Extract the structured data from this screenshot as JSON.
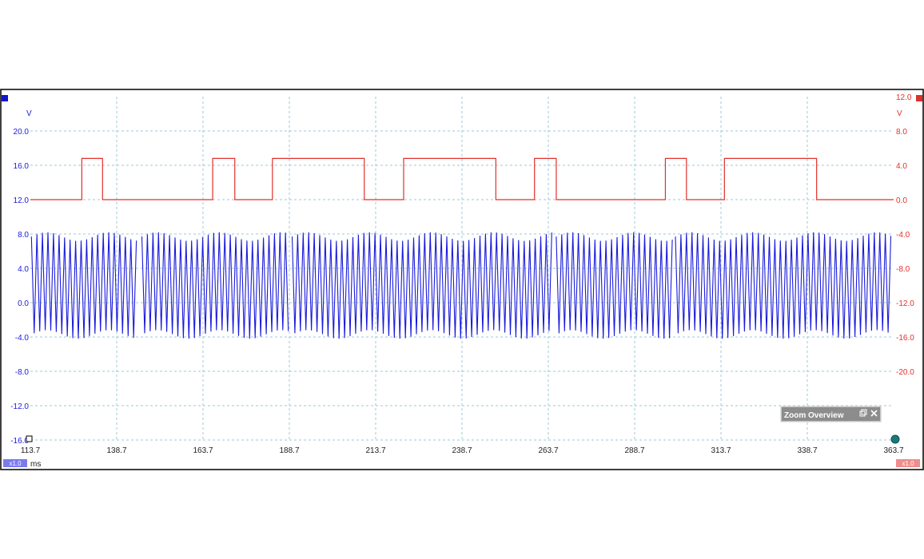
{
  "colors": {
    "channel_a": "#1a1adc",
    "channel_b": "#e0302c",
    "grid": "#9cc8d8",
    "frame": "#000000",
    "zoom_box": "#8c8c8c",
    "handle": "#1a7a7a"
  },
  "x_axis": {
    "unit": "ms",
    "scale_badge": "x1.0"
  },
  "left_axis": {
    "unit": "V",
    "color": "#1a1adc"
  },
  "right_axis": {
    "unit": "V",
    "scale_badge": "x1.0",
    "color": "#e0302c"
  },
  "zoom_overview": {
    "label": "Zoom Overview",
    "restore_icon": "restore-icon",
    "close_icon": "close-icon"
  },
  "chart_data": {
    "type": "line",
    "title": "",
    "xlabel": "ms",
    "ylabel_left": "V",
    "ylabel_right": "V",
    "grid": true,
    "xlim": [
      113.7,
      363.7
    ],
    "ylim_left": [
      -16.0,
      24.0
    ],
    "ylim_right": [
      -28.0,
      12.0
    ],
    "x_ticks": [
      "113.7",
      "138.7",
      "163.7",
      "188.7",
      "213.7",
      "238.7",
      "263.7",
      "288.7",
      "313.7",
      "338.7",
      "363.7"
    ],
    "y_ticks_left": [
      "20.0",
      "16.0",
      "12.0",
      "8.0",
      "4.0",
      "0.0",
      "-4.0",
      "-8.0",
      "-12.0",
      "-16.0"
    ],
    "y_ticks_right": [
      "12.0",
      "8.0",
      "4.0",
      "0.0",
      "-4.0",
      "-8.0",
      "-12.0",
      "-16.0",
      "-20.0"
    ],
    "series": [
      {
        "axis": "right",
        "kind": "digital",
        "low": 0.0,
        "high": 4.8,
        "high_intervals_ms": [
          [
            128.6,
            134.6
          ],
          [
            166.5,
            172.9
          ],
          [
            183.8,
            210.4
          ],
          [
            221.8,
            248.5
          ],
          [
            259.7,
            266.0
          ],
          [
            297.6,
            303.7
          ],
          [
            314.7,
            341.4
          ]
        ]
      },
      {
        "axis": "left",
        "kind": "oscillation",
        "max": 8.5,
        "min": -4.5,
        "period_ms": 1.6,
        "burst_intervals_ms": [
          [
            114.0,
            145.0
          ],
          [
            146.0,
            189.0
          ],
          [
            189.5,
            265.0
          ],
          [
            266.0,
            300.0
          ],
          [
            300.5,
            363.7
          ]
        ]
      }
    ]
  }
}
